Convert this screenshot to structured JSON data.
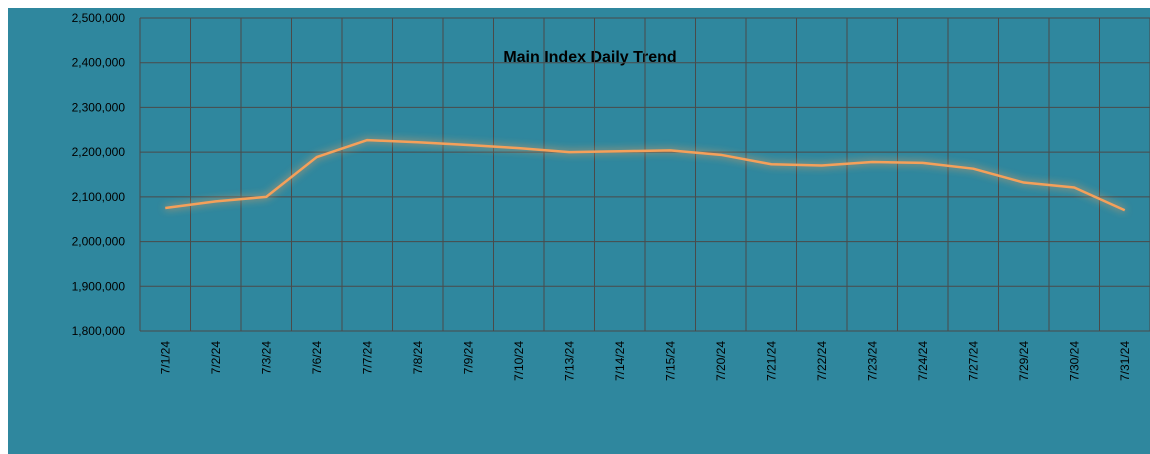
{
  "chart_data": {
    "type": "line",
    "title": "Main Index Daily Trend",
    "categories": [
      "7/1/24",
      "7/2/24",
      "7/3/24",
      "7/6/24",
      "7/7/24",
      "7/8/24",
      "7/9/24",
      "7/10/24",
      "7/13/24",
      "7/14/24",
      "7/15/24",
      "7/20/24",
      "7/21/24",
      "7/22/24",
      "7/23/24",
      "7/24/24",
      "7/27/24",
      "7/29/24",
      "7/30/24",
      "7/31/24"
    ],
    "series": [
      {
        "name": "Main Index",
        "color": "#f5a05a",
        "values": [
          2075000,
          2090000,
          2100000,
          2189000,
          2227000,
          2222000,
          2216000,
          2209000,
          2200000,
          2202000,
          2204000,
          2194000,
          2173000,
          2170000,
          2178000,
          2176000,
          2163000,
          2132000,
          2121000,
          2070000
        ]
      }
    ],
    "ylim": [
      1800000,
      2500000
    ],
    "yticks": [
      {
        "value": 1800000,
        "label": "1,800,000"
      },
      {
        "value": 1900000,
        "label": "1,900,000"
      },
      {
        "value": 2000000,
        "label": "2,000,000"
      },
      {
        "value": 2100000,
        "label": "2,100,000"
      },
      {
        "value": 2200000,
        "label": "2,200,000"
      },
      {
        "value": 2300000,
        "label": "2,300,000"
      },
      {
        "value": 2400000,
        "label": "2,400,000"
      },
      {
        "value": 2500000,
        "label": "2,500,000"
      }
    ],
    "grid": true
  }
}
